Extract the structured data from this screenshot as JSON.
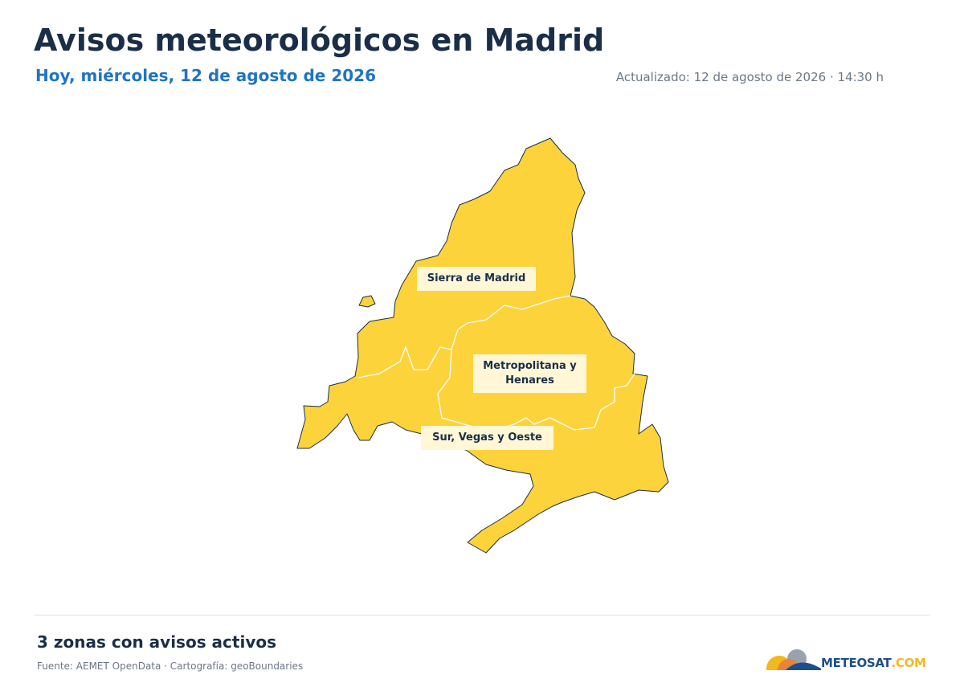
{
  "header": {
    "title": "Avisos meteorológicos en Madrid",
    "subtitle": "Hoy, miércoles, 12 de agosto de 2026",
    "updated": "Actualizado: 12 de agosto de 2026 · 14:30 h"
  },
  "zones": [
    {
      "label": "Sierra de Madrid"
    },
    {
      "label": "Metropolitana y Henares"
    },
    {
      "label": "Sur, Vegas y Oeste"
    }
  ],
  "footer": {
    "summary": "3 zonas con avisos activos",
    "source": "Fuente: AEMET OpenData · Cartografía: geoBoundaries",
    "logo": "METEOSAT",
    "logo_suffix": ".COM"
  }
}
